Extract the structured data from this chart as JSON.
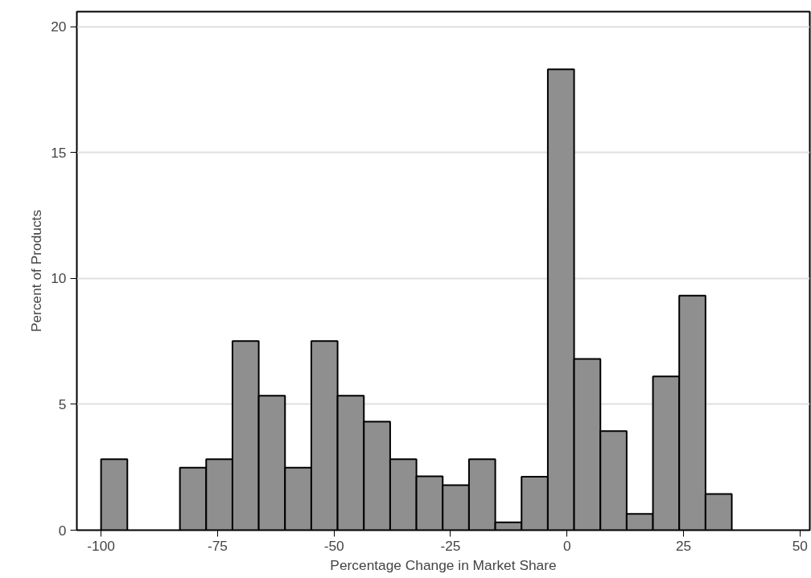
{
  "chart_data": {
    "type": "histogram",
    "xlabel": "Percentage Change in Market Share",
    "ylabel": "Percent of Products",
    "bins": [
      -100,
      -94.36,
      -88.72,
      -83.08,
      -77.44,
      -71.8,
      -66.16,
      -60.52,
      -54.88,
      -49.24,
      -43.6,
      -37.96,
      -32.32,
      -26.68,
      -21.04,
      -15.4,
      -9.76,
      -4.12,
      1.52,
      7.16,
      12.8,
      18.44,
      24.08,
      29.72,
      35.36
    ],
    "values": [
      2.82,
      0,
      0,
      2.48,
      2.82,
      7.51,
      5.34,
      2.48,
      7.51,
      5.34,
      4.31,
      2.82,
      2.14,
      1.79,
      2.82,
      0.31,
      2.12,
      18.31,
      6.8,
      3.94,
      0.65,
      6.11,
      9.32,
      1.44
    ],
    "color": "#8f8f8f",
    "xlim": [
      -105.2,
      52.1
    ],
    "ylim": [
      0,
      20.6
    ],
    "xticks": [
      -100,
      -75,
      -50,
      -25,
      0,
      25,
      50
    ],
    "yticks": [
      0,
      5,
      10,
      15,
      20
    ],
    "grid": "y"
  }
}
